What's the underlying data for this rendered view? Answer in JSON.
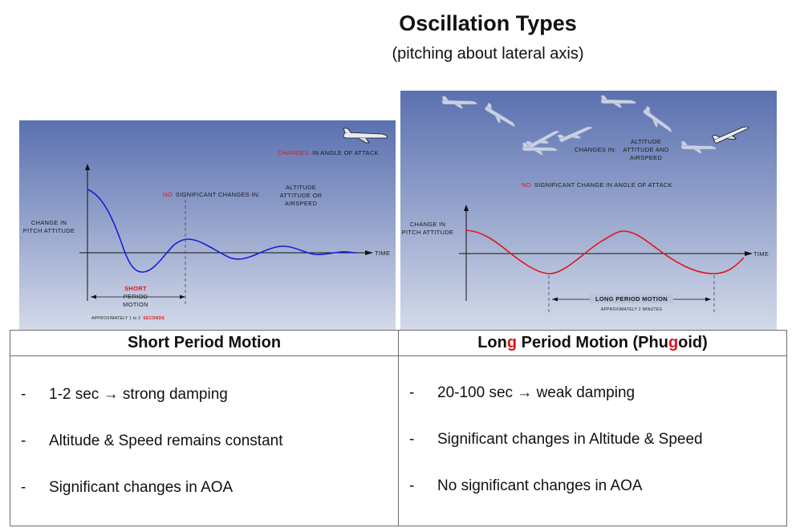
{
  "header": {
    "title": "Oscillation Types",
    "subtitle": "(pitching about lateral axis)"
  },
  "short_period_chart": {
    "y_axis_label": [
      "CHANGE IN",
      "PITCH ATTITUDE"
    ],
    "x_axis_label": "TIME",
    "aoa_note_red": "CHANGES",
    "aoa_note": "IN ANGLE OF ATTACK",
    "no_change_red": "NO",
    "no_change": "SIGNIFICANT CHANGES IN:",
    "no_change_items": [
      "ALTITUDE",
      "ATTITUDE OR",
      "AIRSPEED"
    ],
    "motion_label_red": "SHORT",
    "motion_label": [
      "PERIOD",
      "MOTION"
    ],
    "duration_note": "APPROXIMATELY 1 to 2",
    "duration_unit_red": "SECONDS",
    "curve_color": "#1c1cd6"
  },
  "long_period_chart": {
    "y_axis_label": [
      "CHANGE IN",
      "PITCH ATTITUDE"
    ],
    "x_axis_label": "TIME",
    "changes_label": "CHANGES IN:",
    "changes_items": [
      "ALTITUDE",
      "ATTITUDE AND",
      "AIRSPEED"
    ],
    "no_change_red": "NO",
    "no_change": "SIGNIFICANT CHANGE IN ANGLE OF ATTACK",
    "motion_label": "LONG PERIOD MOTION",
    "duration_note": "APPROXIMATELY 2 MINUTES",
    "curve_color": "#e0151b"
  },
  "table": {
    "left": {
      "heading": "Short Period Motion",
      "bullets": [
        {
          "dash": "-",
          "text": "1-2 sec  →  strong damping"
        },
        {
          "dash": "-",
          "text": "Altitude & Speed remains constant"
        },
        {
          "dash": "-",
          "text": "Significant changes in AOA"
        }
      ]
    },
    "right": {
      "heading_parts": [
        "Lon",
        "g",
        " Period Motion (Phu",
        "g",
        "oid)"
      ],
      "bullets": [
        {
          "dash": "-",
          "text": "20-100 sec  →  weak damping"
        },
        {
          "dash": "-",
          "text": "Significant changes in Altitude & Speed"
        },
        {
          "dash": "-",
          "text": "No significant changes in AOA"
        }
      ]
    }
  },
  "colors": {
    "panel_top": "#5a70b0",
    "panel_bottom": "#c8d1e3",
    "accent_red": "#d6161b"
  }
}
